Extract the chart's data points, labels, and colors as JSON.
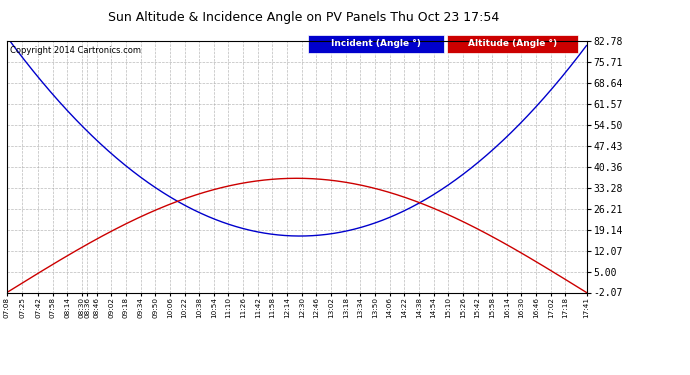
{
  "title": "Sun Altitude & Incidence Angle on PV Panels Thu Oct 23 17:54",
  "copyright": "Copyright 2014 Cartronics.com",
  "legend_incident": "Incident (Angle °)",
  "legend_altitude": "Altitude (Angle °)",
  "incident_color": "#0000cc",
  "altitude_color": "#cc0000",
  "legend_incident_bg": "#0000cc",
  "legend_altitude_bg": "#cc0000",
  "yticks": [
    82.78,
    75.71,
    68.64,
    61.57,
    54.5,
    47.43,
    40.36,
    33.28,
    26.21,
    19.14,
    12.07,
    5.0,
    -2.07
  ],
  "ymin": -2.07,
  "ymax": 82.78,
  "xtick_labels": [
    "07:08",
    "07:25",
    "07:42",
    "07:58",
    "08:14",
    "08:30",
    "08:36",
    "08:46",
    "09:02",
    "09:18",
    "09:34",
    "09:50",
    "10:06",
    "10:22",
    "10:38",
    "10:54",
    "11:10",
    "11:26",
    "11:42",
    "11:58",
    "12:14",
    "12:30",
    "12:46",
    "13:02",
    "13:18",
    "13:34",
    "13:50",
    "14:06",
    "14:22",
    "14:38",
    "14:54",
    "15:10",
    "15:26",
    "15:42",
    "15:58",
    "16:14",
    "16:30",
    "16:46",
    "17:02",
    "17:18",
    "17:41"
  ],
  "background_color": "#ffffff",
  "grid_color": "#aaaaaa",
  "incident_min": 17.0,
  "incident_peak": 82.78,
  "altitude_max": 36.5,
  "altitude_min": -2.07,
  "solar_noon": "12:28"
}
